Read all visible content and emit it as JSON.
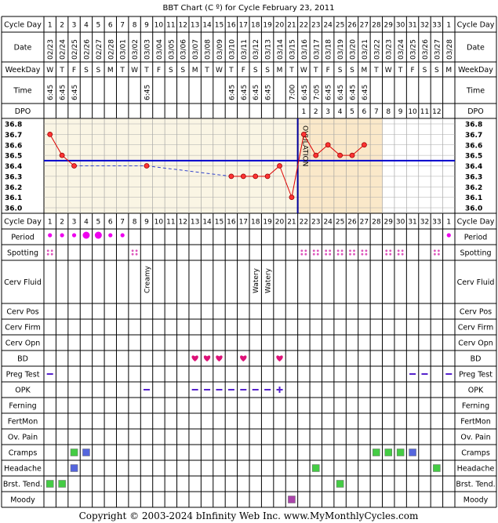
{
  "title": "BBT Chart (C º) for Cycle February 23, 2011",
  "footer": "Copyright © 2003-2024 bInfinity Web Inc.    www.MyMonthlyCycles.com",
  "rows": {
    "cycle_day": "Cycle Day",
    "date": "Date",
    "weekday": "WeekDay",
    "time": "Time",
    "dpo": "DPO",
    "period": "Period",
    "spotting": "Spotting",
    "cerv_fluid": "Cerv Fluid",
    "cerv_pos": "Cerv Pos",
    "cerv_firm": "Cerv Firm",
    "cerv_opn": "Cerv Opn",
    "bd": "BD",
    "preg_test": "Preg Test",
    "opk": "OPK",
    "ferning": "Ferning",
    "fertmon": "FertMon",
    "ov_pain": "Ov. Pain",
    "cramps": "Cramps",
    "headache": "Headache",
    "brst_tend": "Brst. Tend.",
    "moody": "Moody"
  },
  "colors": {
    "chart_bg_pre": "#faf5e4",
    "chart_bg_post": "#fae8c9",
    "coverline": "#0000cc",
    "ovulation_line": "#000099",
    "temp_line": "#dd0000",
    "period": "#ee00ee",
    "spotting": "#dd55bb",
    "bd_heart": "#dd1177",
    "opk": "#5522cc",
    "green_box": "#44cc44",
    "blue_box": "#5566dd",
    "moody_box": "#aa44aa"
  },
  "chart_data": {
    "type": "line",
    "title": "BBT Chart (C º) for Cycle February 23, 2011",
    "cycle_days": [
      1,
      2,
      3,
      4,
      5,
      6,
      7,
      8,
      9,
      10,
      11,
      12,
      13,
      14,
      15,
      16,
      17,
      18,
      19,
      20,
      21,
      22,
      23,
      24,
      25,
      26,
      27,
      28,
      29,
      30,
      31,
      32,
      33,
      1
    ],
    "dates": [
      "02/23",
      "02/24",
      "02/25",
      "02/26",
      "02/27",
      "02/28",
      "03/01",
      "03/02",
      "03/03",
      "03/04",
      "03/05",
      "03/06",
      "03/07",
      "03/08",
      "03/09",
      "03/10",
      "03/11",
      "03/12",
      "03/13",
      "03/14",
      "03/15",
      "03/16",
      "03/17",
      "03/18",
      "03/19",
      "03/20",
      "03/21",
      "03/22",
      "03/23",
      "03/24",
      "03/25",
      "03/26",
      "03/27",
      "03/28"
    ],
    "weekdays": [
      "W",
      "T",
      "F",
      "S",
      "S",
      "M",
      "T",
      "W",
      "T",
      "F",
      "S",
      "S",
      "M",
      "T",
      "W",
      "T",
      "F",
      "S",
      "S",
      "M",
      "T",
      "W",
      "T",
      "F",
      "S",
      "S",
      "M",
      "T",
      "W",
      "T",
      "F",
      "S",
      "S",
      "M"
    ],
    "times": [
      "6:45",
      "6:45",
      "6:45",
      "",
      "",
      "",
      "",
      "",
      "6:45",
      "",
      "",
      "",
      "",
      "",
      "",
      "6:45",
      "6:45",
      "6:45",
      "6:45",
      "",
      "7:00",
      "6:45",
      "7:05",
      "6:45",
      "6:45",
      "6:45",
      "6:45",
      "",
      "",
      "",
      "",
      "",
      "",
      ""
    ],
    "dpo": [
      "",
      "",
      "",
      "",
      "",
      "",
      "",
      "",
      "",
      "",
      "",
      "",
      "",
      "",
      "",
      "",
      "",
      "",
      "",
      "",
      "",
      "1",
      "2",
      "3",
      "4",
      "5",
      "6",
      "7",
      "8",
      "9",
      "10",
      "11",
      "12",
      ""
    ],
    "temperatures": [
      36.7,
      36.5,
      36.4,
      null,
      null,
      null,
      null,
      null,
      36.4,
      null,
      null,
      null,
      null,
      null,
      null,
      36.3,
      36.3,
      36.3,
      36.3,
      36.4,
      36.1,
      36.7,
      36.5,
      36.6,
      36.5,
      36.5,
      36.6,
      null,
      null,
      null,
      null,
      null,
      null,
      null
    ],
    "ylim": [
      36.0,
      36.8
    ],
    "yticks": [
      "36.8",
      "36.7",
      "36.6",
      "36.5",
      "36.4",
      "36.3",
      "36.2",
      "36.1",
      "36.0"
    ],
    "coverline": 36.45,
    "ovulation_day_index": 20,
    "ovulation_label": "OVULATION",
    "cerv_fluid": [
      "",
      "",
      "",
      "",
      "",
      "",
      "",
      "",
      "Creamy",
      "",
      "",
      "",
      "",
      "",
      "",
      "",
      "",
      "Watery",
      "Watery",
      "",
      "",
      "",
      "",
      "",
      "",
      "",
      "",
      "",
      "",
      "",
      "",
      "",
      "",
      ""
    ],
    "period": [
      "s",
      "s",
      "s",
      "l",
      "l",
      "s",
      "s",
      "",
      "",
      "",
      "",
      "",
      "",
      "",
      "",
      "",
      "",
      "",
      "",
      "",
      "",
      "",
      "",
      "",
      "",
      "",
      "",
      "",
      "",
      "",
      "",
      "",
      "",
      "s"
    ],
    "spotting": [
      1,
      0,
      0,
      0,
      0,
      0,
      0,
      1,
      0,
      0,
      0,
      0,
      0,
      0,
      0,
      0,
      0,
      0,
      0,
      0,
      0,
      1,
      1,
      1,
      1,
      1,
      1,
      0,
      1,
      1,
      0,
      0,
      1,
      0
    ],
    "bd": [
      0,
      0,
      0,
      0,
      0,
      0,
      0,
      0,
      0,
      0,
      0,
      0,
      1,
      1,
      1,
      0,
      1,
      0,
      0,
      1,
      0,
      0,
      0,
      0,
      0,
      0,
      0,
      0,
      0,
      0,
      0,
      0,
      0,
      0
    ],
    "preg_test": [
      1,
      0,
      0,
      0,
      0,
      0,
      0,
      0,
      0,
      0,
      0,
      0,
      0,
      0,
      0,
      0,
      0,
      0,
      0,
      0,
      0,
      0,
      0,
      0,
      0,
      0,
      0,
      0,
      0,
      0,
      1,
      1,
      0,
      1
    ],
    "opk": [
      "",
      "",
      "",
      "",
      "",
      "",
      "",
      "",
      "-",
      "",
      "",
      "",
      "-",
      "-",
      "-",
      "-",
      "-",
      "-",
      "-",
      "+",
      "",
      "",
      "",
      "",
      "",
      "",
      "",
      "",
      "",
      "",
      "",
      "",
      "",
      ""
    ],
    "cramps": [
      "",
      "",
      "g",
      "b",
      "",
      "",
      "",
      "",
      "",
      "",
      "",
      "",
      "",
      "",
      "",
      "",
      "",
      "",
      "",
      "",
      "",
      "",
      "",
      "",
      "",
      "",
      "",
      "g",
      "g",
      "g",
      "b",
      "",
      "",
      ""
    ],
    "headache": [
      "",
      "",
      "b",
      "",
      "",
      "",
      "",
      "",
      "",
      "",
      "",
      "",
      "",
      "",
      "",
      "",
      "",
      "",
      "",
      "",
      "",
      "",
      "g",
      "",
      "",
      "",
      "",
      "",
      "",
      "",
      "",
      "",
      "g",
      ""
    ],
    "brst_tend": [
      "g",
      "g",
      "",
      "",
      "",
      "",
      "",
      "",
      "",
      "",
      "",
      "",
      "",
      "",
      "",
      "",
      "",
      "",
      "",
      "",
      "",
      "",
      "",
      "",
      "g",
      "",
      "",
      "",
      "",
      "",
      "",
      "",
      "",
      ""
    ],
    "moody": [
      "",
      "",
      "",
      "",
      "",
      "",
      "",
      "",
      "",
      "",
      "",
      "",
      "",
      "",
      "",
      "",
      "",
      "",
      "",
      "",
      "m",
      "",
      "",
      "",
      "",
      "",
      "",
      "",
      "",
      "",
      "",
      "",
      "",
      ""
    ]
  }
}
